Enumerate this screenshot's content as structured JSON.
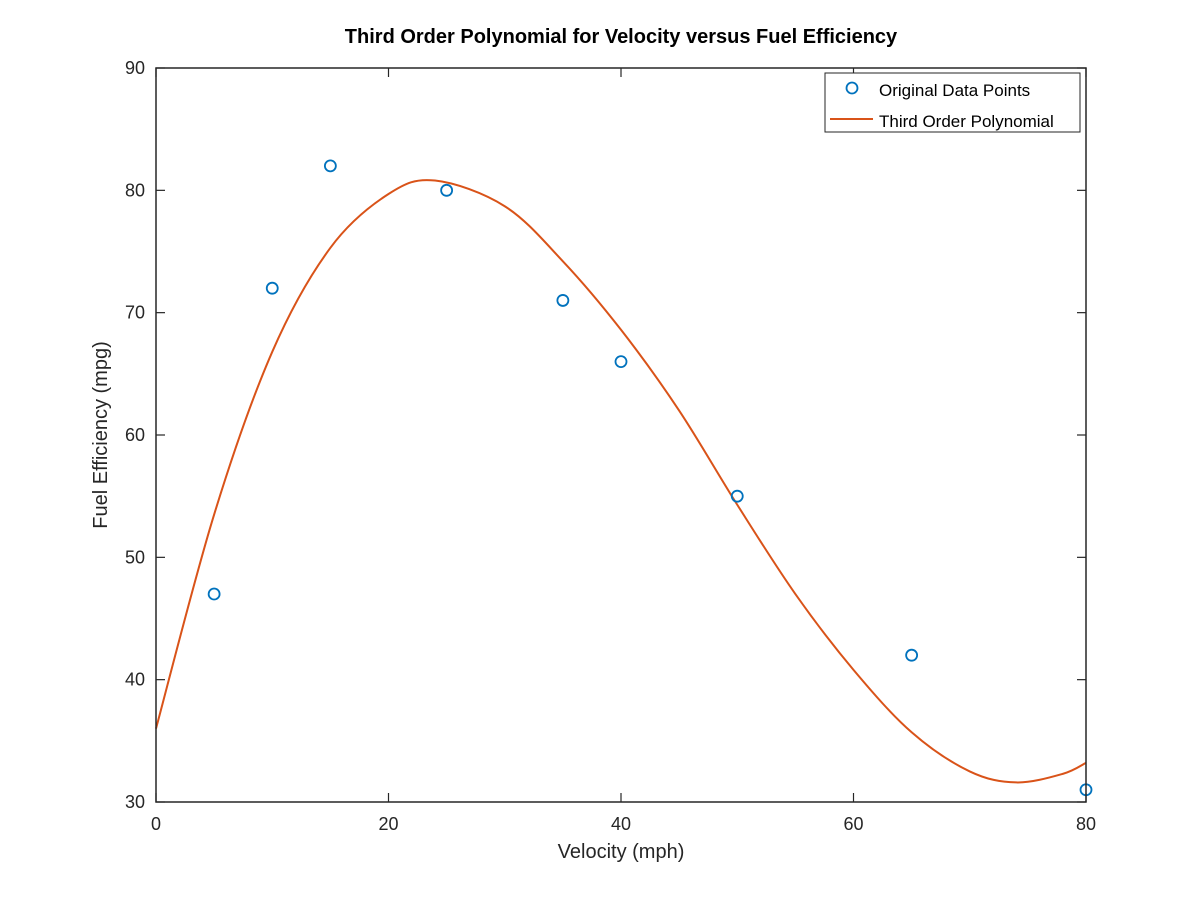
{
  "chart_data": {
    "type": "scatter",
    "title": "Third Order Polynomial for Velocity versus Fuel Efficiency",
    "xlabel": "Velocity (mph)",
    "ylabel": "Fuel Efficiency (mpg)",
    "xlim": [
      0,
      80
    ],
    "ylim": [
      30,
      90
    ],
    "xticks": [
      0,
      20,
      40,
      60,
      80
    ],
    "yticks": [
      30,
      40,
      50,
      60,
      70,
      80,
      90
    ],
    "grid": false,
    "legend_position": "top-right",
    "series": [
      {
        "name": "Original Data Points",
        "kind": "scatter",
        "marker": "circle",
        "color": "#0072BD",
        "x": [
          5,
          10,
          15,
          25,
          35,
          40,
          50,
          65,
          80
        ],
        "y": [
          47,
          72,
          82,
          80,
          71,
          66,
          55,
          42,
          31
        ]
      },
      {
        "name": "Third Order Polynomial",
        "kind": "line",
        "color": "#D95319",
        "x": [
          0,
          5,
          10,
          15,
          20,
          24,
          30,
          35,
          40,
          45,
          50,
          55,
          60,
          65,
          70,
          74,
          78,
          80
        ],
        "y": [
          36.0,
          53.5,
          66.8,
          75.3,
          79.7,
          80.8,
          78.7,
          74.2,
          68.6,
          62.0,
          54.3,
          47.0,
          40.8,
          35.7,
          32.5,
          31.6,
          32.3,
          33.2
        ]
      }
    ]
  }
}
